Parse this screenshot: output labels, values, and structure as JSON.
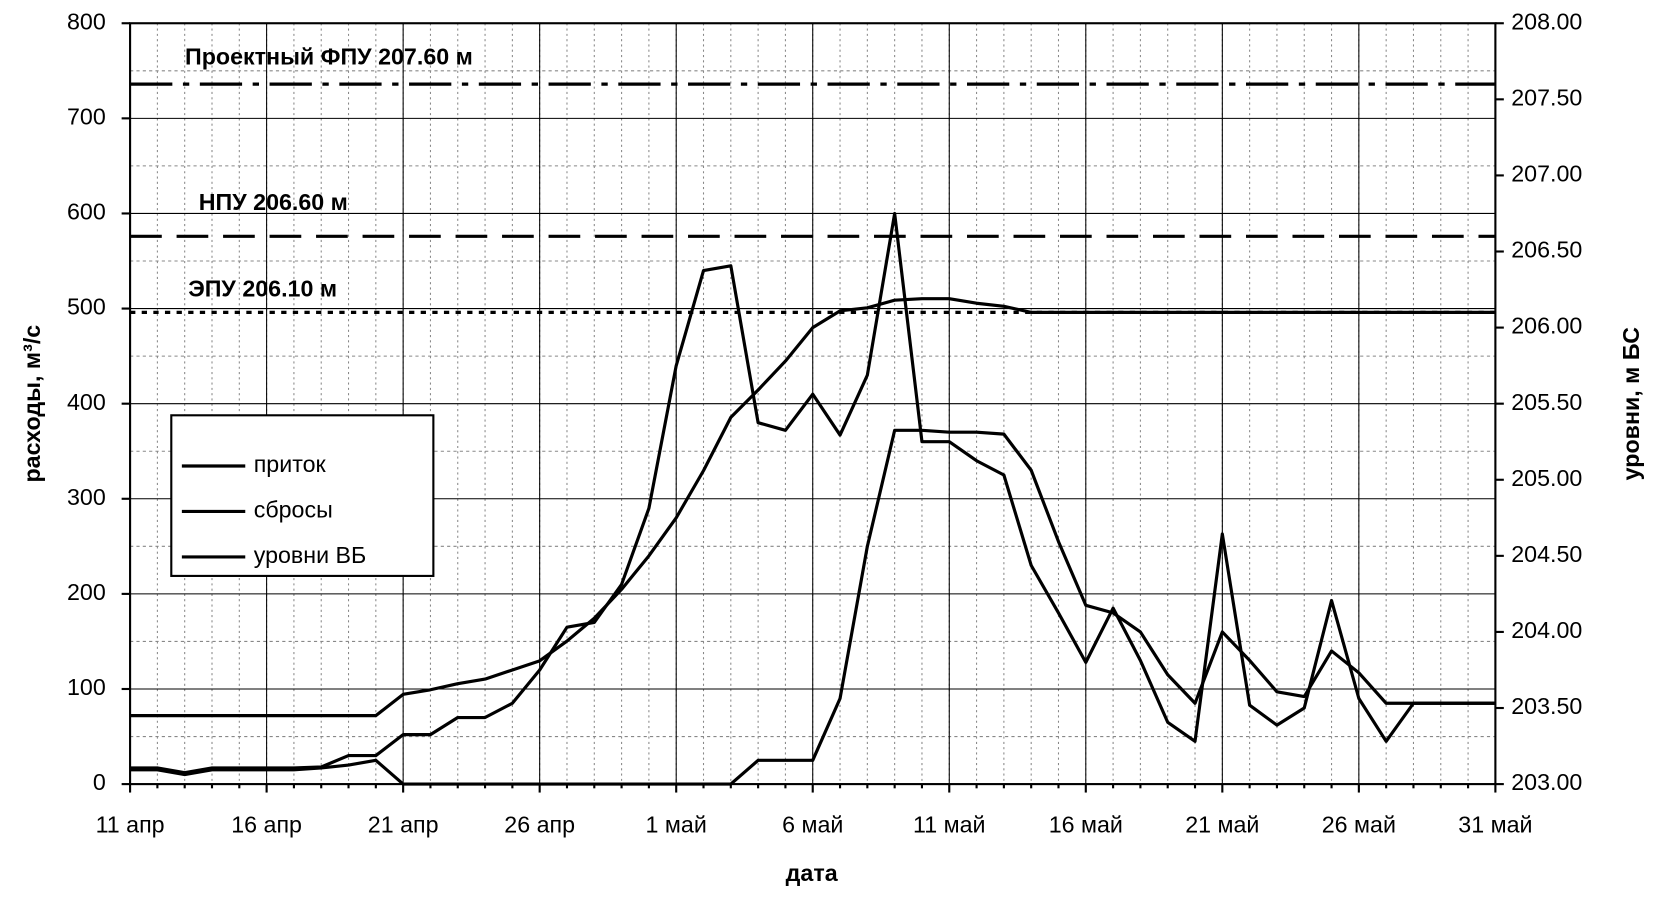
{
  "chart_data": {
    "type": "line",
    "x_label": "дата",
    "y_label": "расходы, м³/с",
    "y2_label": "уровни, м БС",
    "categories": [
      "11 апр",
      null,
      null,
      null,
      null,
      "16 апр",
      null,
      null,
      null,
      null,
      "21 апр",
      null,
      null,
      null,
      null,
      "26 апр",
      null,
      null,
      null,
      null,
      "1 май",
      null,
      null,
      null,
      null,
      "6 май",
      null,
      null,
      null,
      null,
      "11 май",
      null,
      null,
      null,
      null,
      "16 май",
      null,
      null,
      null,
      null,
      "21 май",
      null,
      null,
      null,
      null,
      "26 май",
      null,
      null,
      null,
      null,
      "31 май"
    ],
    "ylim": [
      0,
      800
    ],
    "yticks": [
      0,
      100,
      200,
      300,
      400,
      500,
      600,
      700,
      800
    ],
    "y2lim": [
      203,
      208
    ],
    "y2ticks": [
      {
        "value": 203,
        "label": "203.00"
      },
      {
        "value": 203.5,
        "label": "203.50"
      },
      {
        "value": 204,
        "label": "204.00"
      },
      {
        "value": 204.5,
        "label": "204.50"
      },
      {
        "value": 205,
        "label": "205.00"
      },
      {
        "value": 205.5,
        "label": "205.50"
      },
      {
        "value": 206,
        "label": "206.00"
      },
      {
        "value": 206.5,
        "label": "206.50"
      },
      {
        "value": 207,
        "label": "207.00"
      },
      {
        "value": 207.5,
        "label": "207.50"
      },
      {
        "value": 208,
        "label": "208.00"
      }
    ],
    "grid": true,
    "legend": "left",
    "series": [
      {
        "name": "приток",
        "color": "#000000",
        "values": [
          17,
          17,
          12,
          17,
          17,
          17,
          17,
          18,
          30,
          30,
          52,
          52,
          70,
          70,
          85,
          120,
          165,
          170,
          210,
          290,
          440,
          540,
          545,
          380,
          372,
          410,
          367,
          430,
          600,
          360,
          360,
          340,
          325,
          230,
          180,
          128,
          185,
          130,
          65,
          45,
          263,
          83,
          62,
          80,
          193,
          90,
          45,
          85,
          85,
          85,
          85
        ]
      },
      {
        "name": "сбросы",
        "color": "#000000",
        "values": [
          15,
          15,
          10,
          15,
          15,
          15,
          15,
          17,
          20,
          25,
          0,
          0,
          0,
          0,
          0,
          0,
          0,
          0,
          0,
          0,
          0,
          0,
          0,
          25,
          25,
          25,
          90,
          250,
          372,
          372,
          370,
          370,
          368,
          330,
          255,
          188,
          180,
          160,
          115,
          85,
          160,
          130,
          97,
          92,
          140,
          117,
          85,
          85,
          85,
          85,
          85
        ]
      },
      {
        "name": "уровни ВБ",
        "color": "#000000",
        "axis": "y2",
        "values": [
          203.45,
          203.45,
          203.45,
          203.45,
          203.45,
          203.45,
          203.45,
          203.45,
          203.45,
          203.45,
          203.59,
          203.62,
          203.66,
          203.69,
          203.75,
          203.81,
          203.94,
          204.09,
          204.28,
          204.5,
          204.75,
          205.06,
          205.41,
          205.59,
          205.78,
          206.0,
          206.11,
          206.13,
          206.18,
          206.19,
          206.19,
          206.16,
          206.14,
          206.1,
          206.1,
          206.1,
          206.1,
          206.1,
          206.1,
          206.1,
          206.1,
          206.1,
          206.1,
          206.1,
          206.1,
          206.1,
          206.1,
          206.1,
          206.1,
          206.1,
          206.1
        ]
      }
    ],
    "reference_lines": [
      {
        "label": "Проектный ФПУ 207.60 м",
        "value": 207.6
      },
      {
        "label": "НПУ 206.60 м",
        "value": 206.6
      },
      {
        "label": "ЭПУ 206.10 м",
        "value": 206.1
      }
    ]
  }
}
